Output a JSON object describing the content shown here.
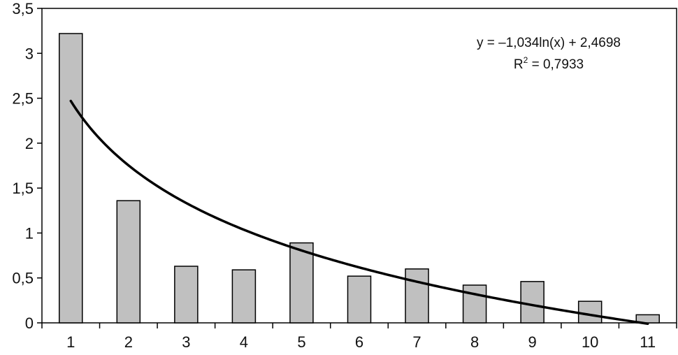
{
  "chart_data": {
    "type": "bar",
    "categories": [
      "1",
      "2",
      "3",
      "4",
      "5",
      "6",
      "7",
      "8",
      "9",
      "10",
      "11"
    ],
    "values": [
      3.22,
      1.36,
      0.63,
      0.59,
      0.89,
      0.52,
      0.6,
      0.42,
      0.46,
      0.24,
      0.09
    ],
    "ylim": [
      0,
      3.5
    ],
    "y_ticks": [
      "0",
      "0,5",
      "1",
      "1,5",
      "2",
      "2,5",
      "3",
      "3,5"
    ],
    "y_tick_values": [
      0,
      0.5,
      1,
      1.5,
      2,
      2.5,
      3,
      3.5
    ],
    "grid": false,
    "bar_color": "#c0c0c0",
    "bar_edge_color": "#000000",
    "trendline": {
      "type": "logarithmic",
      "a": -1.034,
      "b": 2.4698,
      "equation_text": "y = –1,034ln(x) + 2,4698",
      "r2_prefix": "R",
      "r2_sup": "2",
      "r2_value_text": " = 0,7933",
      "color": "#000000"
    }
  }
}
